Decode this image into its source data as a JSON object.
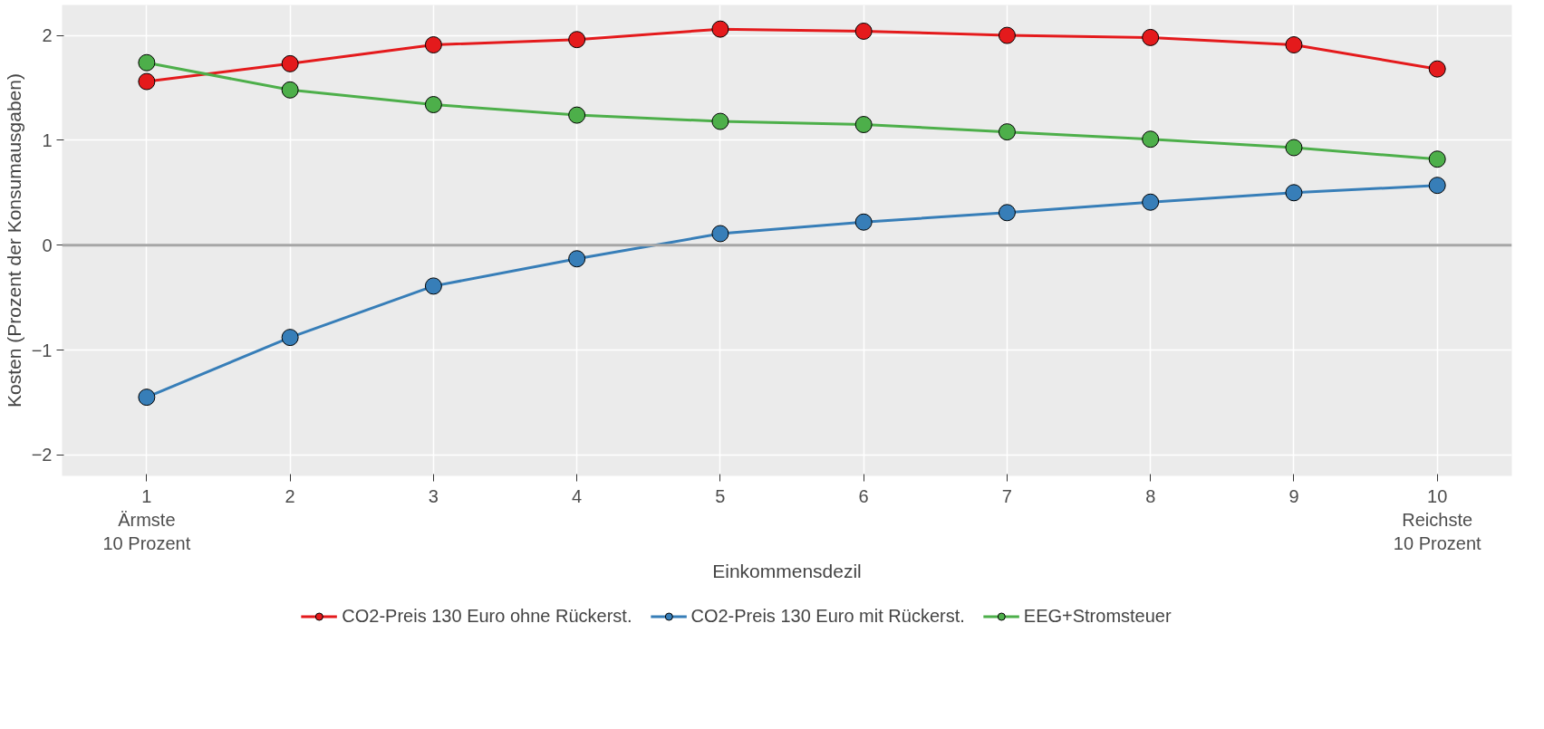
{
  "chart_data": {
    "type": "line",
    "xlabel": "Einkommensdezil",
    "ylabel": "Kosten (Prozent der Konsumausgaben)",
    "x": [
      1,
      2,
      3,
      4,
      5,
      6,
      7,
      8,
      9,
      10
    ],
    "series": [
      {
        "name": "CO2-Preis 130 Euro ohne Rückerst.",
        "color": "#e41a1c",
        "values": [
          1.56,
          1.73,
          1.91,
          1.96,
          2.06,
          2.04,
          2.0,
          1.98,
          1.91,
          1.68
        ]
      },
      {
        "name": "CO2-Preis 130 Euro mit Rückerst.",
        "color": "#377eb8",
        "values": [
          -1.45,
          -0.88,
          -0.39,
          -0.13,
          0.11,
          0.22,
          0.31,
          0.41,
          0.5,
          0.57
        ]
      },
      {
        "name": "EEG+Stromsteuer",
        "color": "#4daf4a",
        "values": [
          1.74,
          1.48,
          1.34,
          1.24,
          1.18,
          1.15,
          1.08,
          1.01,
          0.93,
          0.82
        ]
      }
    ],
    "xlim": [
      0.41,
      10.52
    ],
    "ylim": [
      -2.2,
      2.29
    ],
    "xticks": [
      {
        "value": 1,
        "label": "1\nÄrmste\n10 Prozent"
      },
      2,
      3,
      4,
      5,
      6,
      7,
      8,
      9,
      {
        "value": 10,
        "label": "10\nReichste\n10 Prozent"
      }
    ],
    "yticks": [
      -2,
      -1,
      0,
      1,
      2
    ],
    "ref_lines": [
      {
        "axis": "y",
        "value": 0,
        "label": null,
        "color": "#a6a6a6"
      }
    ],
    "grid": true,
    "legend": "bottom",
    "marker": "circle",
    "line_style": "solid"
  }
}
